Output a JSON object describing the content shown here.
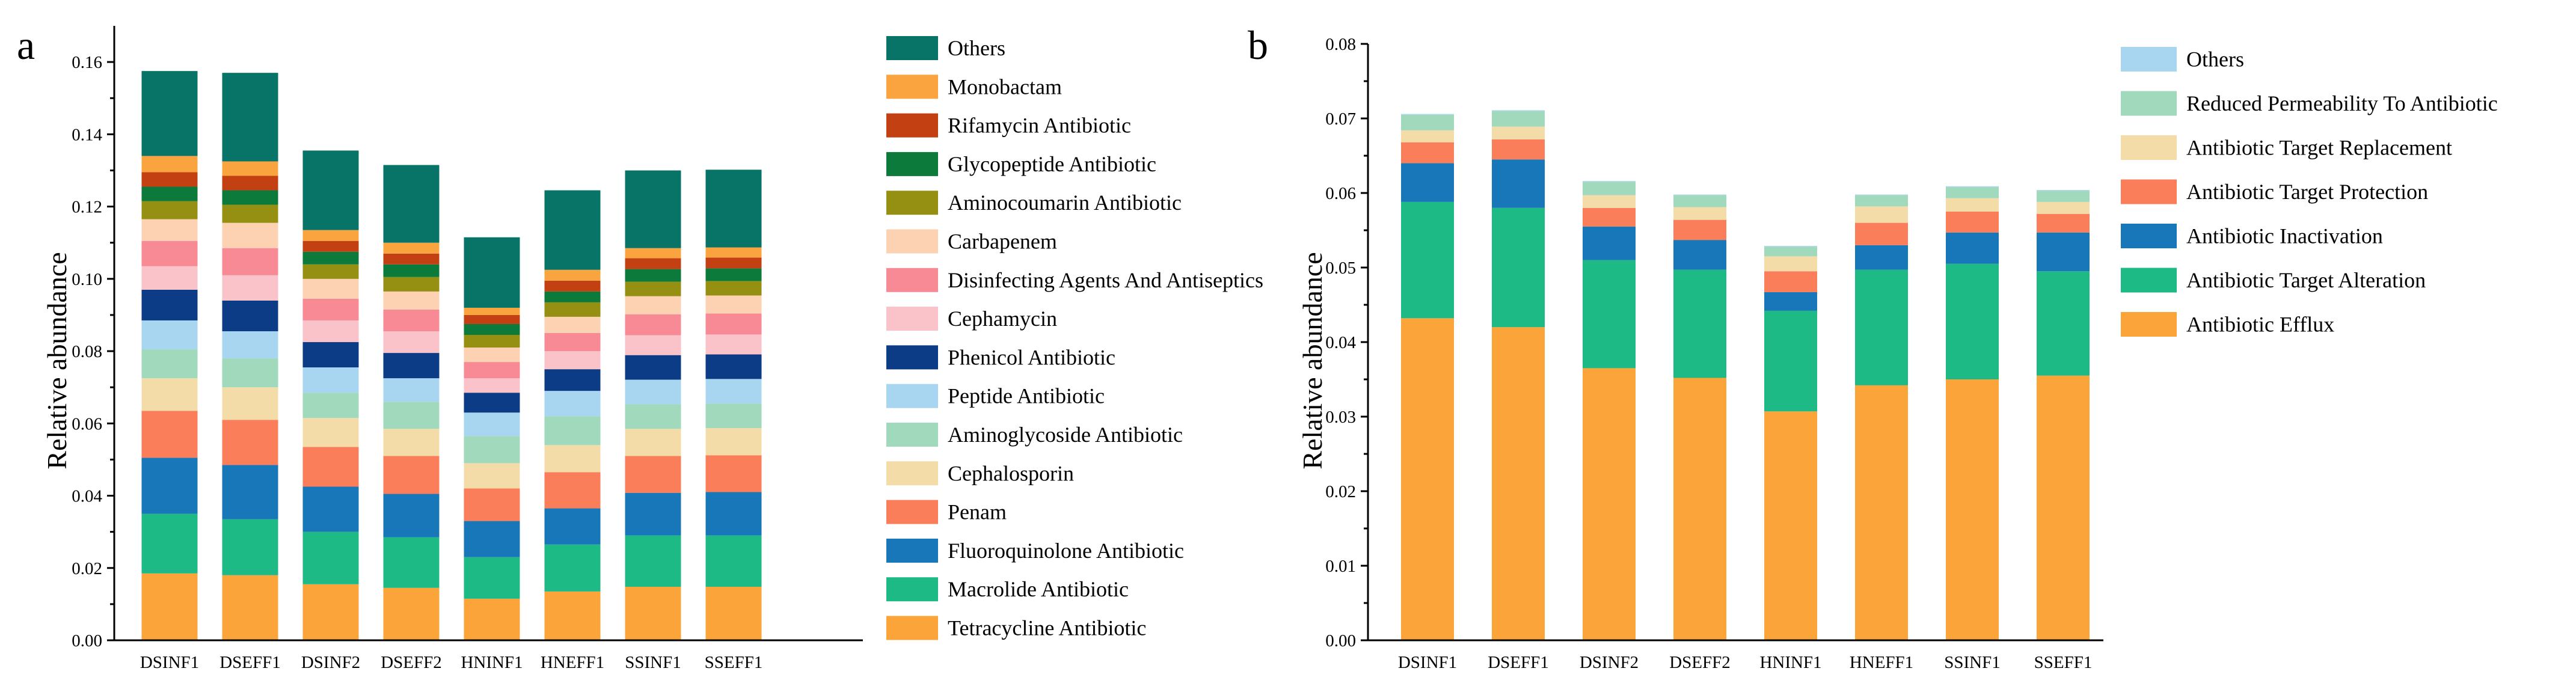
{
  "panels": [
    {
      "letter": "a",
      "ylabel": "Relative abundance"
    },
    {
      "letter": "b",
      "ylabel": "Relative abundance"
    }
  ],
  "chart_data": [
    {
      "type": "bar",
      "stacked": true,
      "title": "",
      "xlabel": "",
      "ylabel": "Relative abundance",
      "ylim": [
        0,
        0.17
      ],
      "yticks": [
        "0.00",
        "0.02",
        "0.04",
        "0.06",
        "0.08",
        "0.10",
        "0.12",
        "0.14",
        "0.16"
      ],
      "legend_position": "right",
      "categories": [
        "DSINF1",
        "DSEFF1",
        "DSINF2",
        "DSEFF2",
        "HNINF1",
        "HNEFF1",
        "SSINF1",
        "SSEFF1"
      ],
      "series": [
        {
          "name": "Tetracycline Antibiotic",
          "color": "#FAA43A",
          "values": [
            0.0185,
            0.018,
            0.0155,
            0.0145,
            0.0115,
            0.0135,
            0.0148,
            0.0148
          ]
        },
        {
          "name": "Macrolide Antibiotic",
          "color": "#1DBA86",
          "values": [
            0.0165,
            0.0155,
            0.0145,
            0.014,
            0.0115,
            0.013,
            0.0142,
            0.0142
          ]
        },
        {
          "name": "Fluoroquinolone Antibiotic",
          "color": "#1877B8",
          "values": [
            0.0155,
            0.015,
            0.0125,
            0.012,
            0.01,
            0.01,
            0.0118,
            0.012
          ]
        },
        {
          "name": "Penam",
          "color": "#FA7E5A",
          "values": [
            0.013,
            0.0125,
            0.011,
            0.0105,
            0.009,
            0.01,
            0.0102,
            0.0102
          ]
        },
        {
          "name": "Cephalosporin",
          "color": "#F4DCA8",
          "values": [
            0.009,
            0.009,
            0.008,
            0.0075,
            0.007,
            0.0075,
            0.0075,
            0.0075
          ]
        },
        {
          "name": "Aminoglycoside Antibiotic",
          "color": "#A1D9BC",
          "values": [
            0.008,
            0.008,
            0.007,
            0.0075,
            0.0075,
            0.008,
            0.0068,
            0.0068
          ]
        },
        {
          "name": "Peptide Antibiotic",
          "color": "#A8D5EF",
          "values": [
            0.008,
            0.0075,
            0.007,
            0.0065,
            0.0065,
            0.007,
            0.0068,
            0.0068
          ]
        },
        {
          "name": "Phenicol Antibiotic",
          "color": "#0D3C87",
          "values": [
            0.0085,
            0.0085,
            0.007,
            0.007,
            0.0055,
            0.006,
            0.0068,
            0.0068
          ]
        },
        {
          "name": "Cephamycin",
          "color": "#FAC3C9",
          "values": [
            0.0065,
            0.007,
            0.006,
            0.006,
            0.004,
            0.005,
            0.0055,
            0.0055
          ]
        },
        {
          "name": "Disinfecting Agents And Antiseptics",
          "color": "#F78A94",
          "values": [
            0.007,
            0.0075,
            0.006,
            0.006,
            0.0045,
            0.005,
            0.0058,
            0.0058
          ]
        },
        {
          "name": "Carbapenem",
          "color": "#FDD2B3",
          "values": [
            0.006,
            0.007,
            0.0055,
            0.005,
            0.004,
            0.0045,
            0.005,
            0.005
          ]
        },
        {
          "name": "Aminocoumarin Antibiotic",
          "color": "#969012",
          "values": [
            0.005,
            0.005,
            0.004,
            0.004,
            0.0035,
            0.004,
            0.004,
            0.004
          ]
        },
        {
          "name": "Glycopeptide Antibiotic",
          "color": "#0B7A3B",
          "values": [
            0.004,
            0.004,
            0.0035,
            0.0035,
            0.003,
            0.003,
            0.0035,
            0.0035
          ]
        },
        {
          "name": "Rifamycin Antibiotic",
          "color": "#C34013",
          "values": [
            0.004,
            0.004,
            0.003,
            0.003,
            0.0025,
            0.003,
            0.003,
            0.003
          ]
        },
        {
          "name": "Monobactam",
          "color": "#F9A43E",
          "values": [
            0.0045,
            0.004,
            0.003,
            0.003,
            0.002,
            0.003,
            0.0028,
            0.0028
          ]
        },
        {
          "name": "Others",
          "color": "#087468",
          "values": [
            0.0235,
            0.0245,
            0.022,
            0.0215,
            0.0195,
            0.022,
            0.0215,
            0.0215
          ]
        }
      ]
    },
    {
      "type": "bar",
      "stacked": true,
      "title": "",
      "xlabel": "",
      "ylabel": "Relative abundance",
      "ylim": [
        0,
        0.08
      ],
      "yticks": [
        "0.00",
        "0.01",
        "0.02",
        "0.03",
        "0.04",
        "0.05",
        "0.06",
        "0.07",
        "0.08"
      ],
      "legend_position": "right",
      "categories": [
        "DSINF1",
        "DSEFF1",
        "DSINF2",
        "DSEFF2",
        "HNINF1",
        "HNEFF1",
        "SSINF1",
        "SSEFF1"
      ],
      "series": [
        {
          "name": "Antibiotic Efflux",
          "color": "#FAA43A",
          "values": [
            0.0432,
            0.042,
            0.0365,
            0.0352,
            0.0307,
            0.0342,
            0.035,
            0.0355
          ]
        },
        {
          "name": "Antibiotic Target Alteration",
          "color": "#1DBA86",
          "values": [
            0.0156,
            0.016,
            0.0145,
            0.0145,
            0.0135,
            0.0155,
            0.0155,
            0.014
          ]
        },
        {
          "name": "Antibiotic Inactivation",
          "color": "#1877B8",
          "values": [
            0.0052,
            0.0065,
            0.0045,
            0.004,
            0.0025,
            0.0033,
            0.0042,
            0.0052
          ]
        },
        {
          "name": "Antibiotic Target Protection",
          "color": "#FA7E5A",
          "values": [
            0.0028,
            0.0027,
            0.0025,
            0.0027,
            0.0028,
            0.003,
            0.0028,
            0.0025
          ]
        },
        {
          "name": "Antibiotic Target Replacement",
          "color": "#F4DCA8",
          "values": [
            0.0016,
            0.0017,
            0.0017,
            0.0017,
            0.002,
            0.0022,
            0.0018,
            0.0016
          ]
        },
        {
          "name": "Reduced Permeability To Antibiotic",
          "color": "#A1D9BC",
          "values": [
            0.0021,
            0.0021,
            0.0018,
            0.0016,
            0.0013,
            0.0015,
            0.0015,
            0.0015
          ]
        },
        {
          "name": "Others",
          "color": "#A8D5EF",
          "values": [
            0.0001,
            0.0001,
            0.0001,
            0.0001,
            0.0001,
            0.0001,
            0.0001,
            0.0001
          ]
        }
      ]
    }
  ]
}
